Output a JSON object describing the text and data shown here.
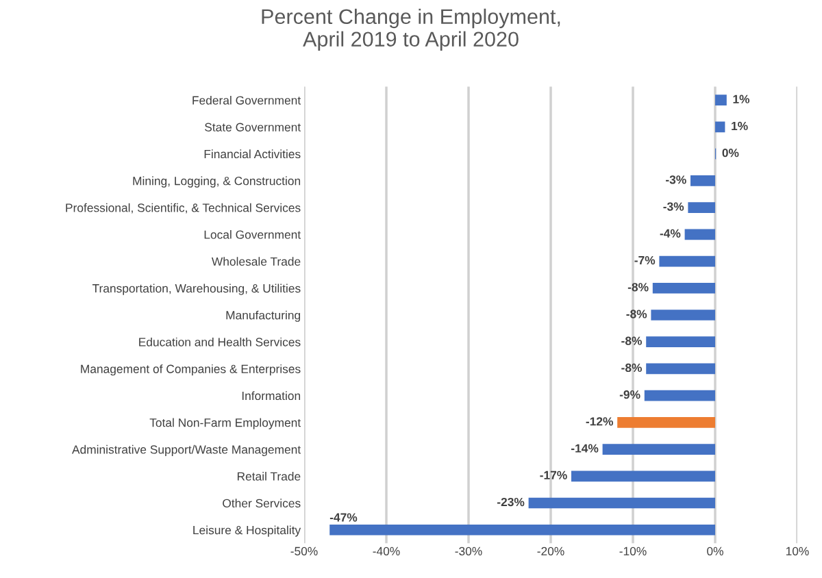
{
  "chart_data": {
    "type": "bar",
    "orientation": "horizontal",
    "title": "Percent Change in Employment,\nApril 2019 to April 2020",
    "categories": [
      "Federal Government",
      "State Government",
      "Financial Activities",
      "Mining, Logging, & Construction",
      "Professional, Scientific, & Technical Services",
      "Local Government",
      "Wholesale Trade",
      "Transportation, Warehousing, & Utilities",
      "Manufacturing",
      "Education and Health Services",
      "Management of Companies & Enterprises",
      "Information",
      "Total Non-Farm Employment",
      "Administrative Support/Waste Management",
      "Retail Trade",
      "Other Services",
      "Leisure & Hospitality"
    ],
    "values": [
      1.4,
      1.2,
      0.1,
      -3.0,
      -3.3,
      -3.7,
      -6.8,
      -7.6,
      -7.8,
      -8.4,
      -8.4,
      -8.6,
      -11.9,
      -13.7,
      -17.5,
      -22.7,
      -46.9
    ],
    "value_labels": [
      "1%",
      "1%",
      "0%",
      "-3%",
      "-3%",
      "-4%",
      "-7%",
      "-8%",
      "-8%",
      "-8%",
      "-8%",
      "-9%",
      "-12%",
      "-14%",
      "-17%",
      "-23%",
      "-47%"
    ],
    "colors": [
      "#4472c4",
      "#4472c4",
      "#4472c4",
      "#4472c4",
      "#4472c4",
      "#4472c4",
      "#4472c4",
      "#4472c4",
      "#4472c4",
      "#4472c4",
      "#4472c4",
      "#4472c4",
      "#ed7d31",
      "#4472c4",
      "#4472c4",
      "#4472c4",
      "#4472c4"
    ],
    "xlim": [
      -50,
      10
    ],
    "xticks": [
      {
        "value": -50,
        "label": "-50%"
      },
      {
        "value": -40,
        "label": "-40%"
      },
      {
        "value": -30,
        "label": "-30%"
      },
      {
        "value": -20,
        "label": "-20%"
      },
      {
        "value": -10,
        "label": "-10%"
      },
      {
        "value": 0,
        "label": "0%"
      },
      {
        "value": 10,
        "label": "10%"
      }
    ],
    "grid": "x"
  }
}
